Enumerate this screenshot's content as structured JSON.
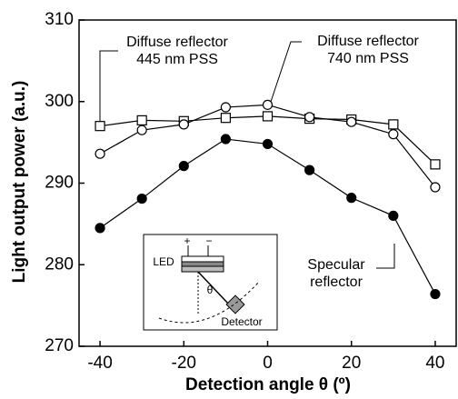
{
  "chart_data": {
    "type": "line",
    "x_label": "Detection angle θ (º)",
    "y_label": "Light output power (a.u.)",
    "x": [
      -40,
      -30,
      -20,
      -10,
      0,
      10,
      20,
      30,
      40
    ],
    "xlim": [
      -45,
      45
    ],
    "xticks": [
      -40,
      -20,
      0,
      20,
      40
    ],
    "ylim": [
      270,
      310
    ],
    "yticks": [
      270,
      280,
      290,
      300,
      310
    ],
    "series": [
      {
        "marker": "square",
        "color": "#000000",
        "values": [
          297.0,
          297.7,
          297.6,
          298.0,
          298.2,
          297.9,
          297.8,
          297.2,
          292.3
        ]
      },
      {
        "marker": "open-circle",
        "color": "#000000",
        "values": [
          293.6,
          296.5,
          297.2,
          299.3,
          299.6,
          298.1,
          297.5,
          296.0,
          289.5
        ]
      },
      {
        "marker": "filled-circle",
        "color": "#000000",
        "values": [
          284.5,
          288.1,
          292.1,
          295.4,
          294.8,
          291.6,
          288.2,
          286.0,
          276.4
        ]
      }
    ],
    "annotations": [
      {
        "lines": [
          "Diffuse reflector",
          "445 nm PSS"
        ]
      },
      {
        "lines": [
          "Diffuse reflector",
          "740 nm PSS"
        ]
      },
      {
        "lines": [
          "Specular",
          "reflector"
        ]
      }
    ],
    "inset": {
      "plus": "+",
      "minus": "−",
      "led": "LED",
      "theta": "θ",
      "detector": "Detector"
    }
  }
}
